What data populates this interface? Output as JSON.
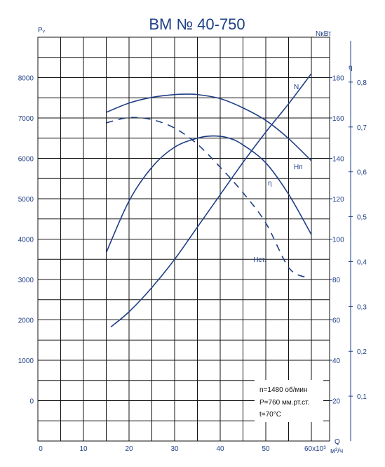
{
  "chart_data": {
    "type": "line",
    "title": "ВМ № 40-750",
    "ylabel_left": "Pᵥ",
    "ylabel_right_power": "NкВт",
    "ylabel_right_eff": "η",
    "xlabel_unit_top": "Q",
    "xlabel_unit_bottom": "м³/ч",
    "x_ticks": [
      "0",
      "10",
      "20",
      "30",
      "40",
      "50",
      "60x10³"
    ],
    "y_left_ticks": [
      "8000",
      "7000",
      "6000",
      "5000",
      "4000",
      "3000",
      "2000",
      "1000",
      "0"
    ],
    "y_power_ticks": [
      "180",
      "160",
      "140",
      "120",
      "100",
      "80",
      "60",
      "40",
      "20"
    ],
    "y_eff_ticks": [
      "0,8",
      "0,7",
      "0,6",
      "0,5",
      "0,4",
      "0,3",
      "0,2",
      "0,1"
    ],
    "xlim": [
      0,
      64
    ],
    "ylim_left": [
      -1000,
      9000
    ],
    "ylim_power": [
      0,
      200
    ],
    "ylim_eff": [
      0,
      0.9
    ],
    "grid": true,
    "series": [
      {
        "name": "Hп",
        "axis": "left",
        "style": "solid",
        "x": [
          15,
          20,
          25,
          30,
          33,
          35,
          40,
          45,
          50,
          55,
          60
        ],
        "y": [
          7140,
          7370,
          7510,
          7580,
          7590,
          7580,
          7480,
          7250,
          6940,
          6490,
          5940
        ]
      },
      {
        "name": "Нст.",
        "axis": "left",
        "style": "dashed",
        "x": [
          15,
          20,
          25,
          30,
          35,
          40,
          45,
          50,
          55,
          58.8
        ],
        "y": [
          6880,
          7010,
          6960,
          6750,
          6350,
          5780,
          5150,
          4400,
          3300,
          3050
        ]
      },
      {
        "name": "η",
        "axis": "efficiency",
        "style": "solid",
        "x": [
          15,
          20,
          25,
          30,
          35,
          38.5,
          42,
          45,
          50,
          55,
          60
        ],
        "y": [
          0.42,
          0.535,
          0.61,
          0.655,
          0.675,
          0.68,
          0.675,
          0.66,
          0.62,
          0.55,
          0.46
        ]
      },
      {
        "name": "N",
        "axis": "power",
        "style": "solid",
        "x": [
          16,
          20,
          25,
          30,
          35,
          40,
          45,
          50,
          55,
          60
        ],
        "y": [
          56.5,
          64,
          76,
          90,
          106,
          122,
          138,
          153,
          167,
          182
        ]
      }
    ],
    "info_box": [
      "n=1480 об/мин",
      "P=760 мм.рт.ст.",
      "t=70°C"
    ]
  },
  "colors": {
    "curve": "#1f3f86",
    "grid": "#111111",
    "text": "#1f3f86"
  }
}
